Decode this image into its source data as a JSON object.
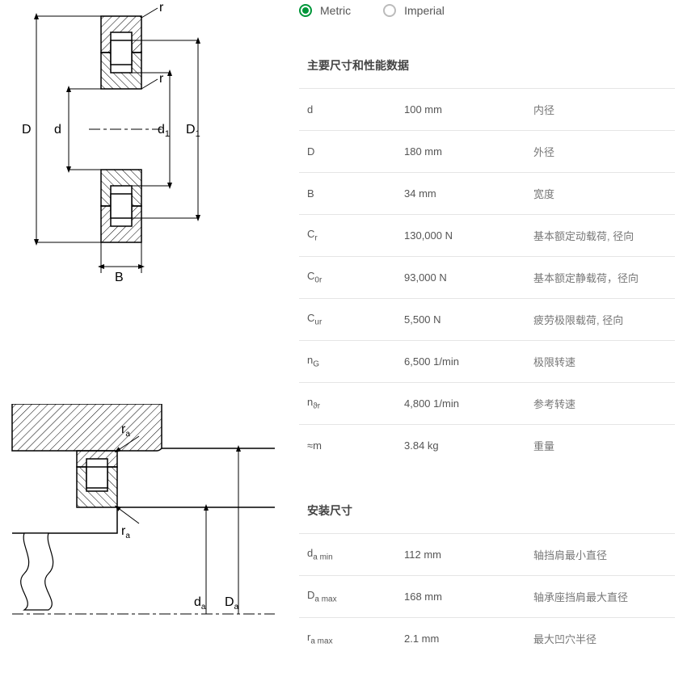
{
  "units": {
    "metric_label": "Metric",
    "imperial_label": "Imperial",
    "selected": "metric"
  },
  "diagram_top": {
    "labels": {
      "D": "D",
      "d": "d",
      "d1": "d",
      "d1_sub": "1",
      "D1": "D",
      "D1_sub": "1",
      "B": "B",
      "r_top": "r",
      "r_bottom": "r"
    },
    "stroke": "#000000",
    "hatch_spacing": 6
  },
  "diagram_bottom": {
    "labels": {
      "ra_top": "r",
      "ra_top_sub": "a",
      "ra_bottom": "r",
      "ra_bottom_sub": "a",
      "da": "d",
      "da_sub": "a",
      "Da": "D",
      "Da_sub": "a"
    },
    "stroke": "#000000"
  },
  "section1_title": "主要尺寸和性能数据",
  "section2_title": "安装尺寸",
  "main_dims": [
    {
      "symbol_html": "d",
      "value": "100 mm",
      "desc": "内径"
    },
    {
      "symbol_html": "D",
      "value": "180 mm",
      "desc": "外径"
    },
    {
      "symbol_html": "B",
      "value": "34 mm",
      "desc": "宽度"
    },
    {
      "symbol_html": "C<sub>r</sub>",
      "value": "130,000 N",
      "desc": "基本额定动载荷, 径向"
    },
    {
      "symbol_html": "C<sub>0r</sub>",
      "value": "93,000 N",
      "desc": "基本额定静载荷，径向"
    },
    {
      "symbol_html": "C<sub>ur</sub>",
      "value": "5,500 N",
      "desc": "疲劳极限载荷, 径向"
    },
    {
      "symbol_html": "n<sub>G</sub>",
      "value": "6,500 1/min",
      "desc": "极限转速"
    },
    {
      "symbol_html": "n<sub>ϑr</sub>",
      "value": "4,800 1/min",
      "desc": "参考转速"
    },
    {
      "symbol_html": "≈m",
      "value": "3.84 kg",
      "desc": "重量"
    }
  ],
  "mounting_dims": [
    {
      "symbol_html": "d<sub>a min</sub>",
      "value": "112 mm",
      "desc": "轴挡肩最小直径"
    },
    {
      "symbol_html": "D<sub>a max</sub>",
      "value": "168 mm",
      "desc": "轴承座挡肩最大直径"
    },
    {
      "symbol_html": "r<sub>a max</sub>",
      "value": "2.1 mm",
      "desc": "最大凹穴半径"
    }
  ],
  "colors": {
    "accent": "#009639",
    "border": "#e5e5e5",
    "text": "#555555",
    "text_muted": "#777777"
  }
}
